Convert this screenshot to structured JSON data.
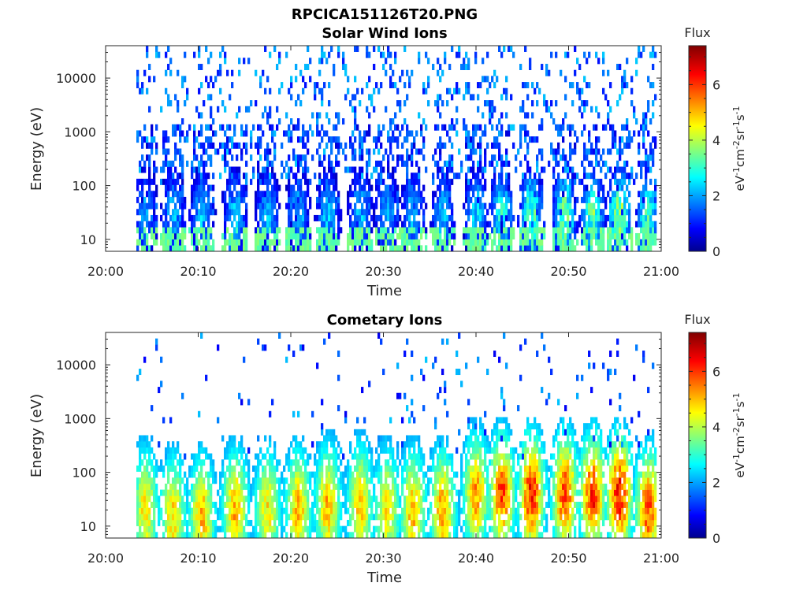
{
  "figure": {
    "title": "RPCICA151126T20.PNG"
  },
  "chart_data": [
    {
      "type": "heatmap",
      "title": "Solar Wind Ions",
      "xlabel": "Time",
      "ylabel": "Energy (eV)",
      "x_ticks": [
        "20:00",
        "20:10",
        "20:20",
        "20:30",
        "20:40",
        "20:50",
        "21:00"
      ],
      "x_range_minutes": [
        0,
        60
      ],
      "y_scale": "log",
      "y_ticks": [
        "10",
        "100",
        "1000",
        "10000"
      ],
      "y_range": [
        6,
        40000
      ],
      "colorbar": {
        "label_top": "Flux",
        "label_side": "eV-1cm-2sr-1s-1",
        "ticks": [
          "0",
          "2",
          "4",
          "6"
        ],
        "range": [
          0,
          7.4
        ],
        "colormap": "jet"
      },
      "grid": false,
      "legend": "none",
      "bursts_center_minutes": [
        4.3,
        7.3,
        10.4,
        14.0,
        17.5,
        20.8,
        24.0,
        27.5,
        30.4,
        33.2,
        36.4,
        40.0,
        42.8,
        46.0,
        49.6,
        52.6,
        55.5,
        58.6
      ],
      "burst_peak_flux": [
        2.2,
        2.4,
        2.4,
        2.4,
        2.3,
        2.4,
        2.4,
        2.4,
        2.3,
        2.4,
        2.4,
        2.6,
        3.0,
        3.6,
        3.6,
        3.6,
        4.0,
        3.2
      ],
      "burst_peak_energy_eV": [
        30,
        30,
        30,
        30,
        30,
        30,
        30,
        30,
        30,
        30,
        30,
        30,
        30,
        30,
        30,
        30,
        30,
        30
      ]
    },
    {
      "type": "heatmap",
      "title": "Cometary Ions",
      "xlabel": "Time",
      "ylabel": "Energy (eV)",
      "x_ticks": [
        "20:00",
        "20:10",
        "20:20",
        "20:30",
        "20:40",
        "20:50",
        "21:00"
      ],
      "x_range_minutes": [
        0,
        60
      ],
      "y_scale": "log",
      "y_ticks": [
        "10",
        "100",
        "1000",
        "10000"
      ],
      "y_range": [
        6,
        40000
      ],
      "colorbar": {
        "label_top": "Flux",
        "label_side": "eV-1cm-2sr-1s-1",
        "ticks": [
          "0",
          "2",
          "4",
          "6"
        ],
        "range": [
          0,
          7.4
        ],
        "colormap": "jet"
      },
      "grid": false,
      "legend": "none",
      "bursts_center_minutes": [
        4.3,
        7.3,
        10.4,
        14.0,
        17.5,
        20.8,
        24.0,
        27.5,
        30.4,
        33.2,
        36.4,
        40.0,
        42.8,
        46.0,
        49.6,
        52.6,
        55.5,
        58.6
      ],
      "burst_peak_flux": [
        5.0,
        5.2,
        5.4,
        5.5,
        5.0,
        5.4,
        5.4,
        5.2,
        5.0,
        5.4,
        5.6,
        5.6,
        6.2,
        6.6,
        6.4,
        6.5,
        6.8,
        6.2
      ],
      "burst_peak_energy_eV": [
        20,
        15,
        15,
        20,
        20,
        20,
        25,
        25,
        20,
        20,
        20,
        40,
        40,
        40,
        40,
        40,
        40,
        20
      ]
    }
  ]
}
